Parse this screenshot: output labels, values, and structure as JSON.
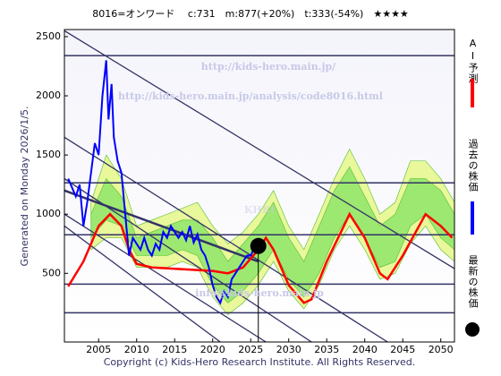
{
  "chart_data": {
    "type": "line",
    "title": "8016=オンワード　 c:731　m:877(+20%)　t:333(-54%)　★★★★",
    "side_note": "Generated on Monday 2026/1/5.",
    "footer": "Copyright (c) Kids-Hero Research Institute. All Rights Reserved.",
    "watermarks": [
      "http://kids-hero.main.jp/",
      "http://kids-hero.main.jp/analysis/code8016.html",
      "KHRI",
      "info@kids-hero.main.jp"
    ],
    "xlim": [
      2000.5,
      2051.8
    ],
    "xticks": [
      2005,
      2010,
      2015,
      2020,
      2025,
      2030,
      2035,
      2040,
      2045,
      2050
    ],
    "ylim": [
      -80,
      2560
    ],
    "yticks": [
      500,
      1000,
      1500,
      2000,
      2500
    ],
    "series": [
      {
        "name": "AI予測",
        "color": "#ff0000",
        "x": [
          2001,
          2003,
          2005,
          2006.5,
          2008,
          2009,
          2010,
          2012,
          2020,
          2022,
          2024,
          2026,
          2027,
          2028,
          2030,
          2032,
          2033,
          2035,
          2038,
          2040,
          2042,
          2043,
          2045,
          2048,
          2050,
          2051.5
        ],
        "values": [
          390,
          600,
          900,
          1000,
          900,
          700,
          580,
          550,
          520,
          500,
          550,
          700,
          800,
          700,
          400,
          250,
          280,
          600,
          1000,
          800,
          500,
          450,
          650,
          1000,
          900,
          800
        ]
      },
      {
        "name": "過去の株価",
        "color": "#0000ff",
        "x": [
          2001,
          2002,
          2002.5,
          2003,
          2003.5,
          2004,
          2004.5,
          2005,
          2005.5,
          2006,
          2006.3,
          2006.7,
          2007,
          2007.5,
          2008,
          2008.5,
          2009,
          2009.5,
          2010,
          2010.5,
          2011,
          2011.5,
          2012,
          2012.5,
          2013,
          2013.5,
          2014,
          2014.5,
          2015,
          2015.5,
          2016,
          2016.5,
          2017,
          2017.5,
          2018,
          2018.5,
          2019,
          2019.5,
          2020,
          2020.5,
          2021,
          2021.5,
          2022,
          2022.5,
          2023,
          2023.5,
          2024,
          2024.5,
          2025,
          2025.5,
          2026
        ],
        "values": [
          1300,
          1150,
          1250,
          900,
          1100,
          1350,
          1600,
          1500,
          2000,
          2300,
          1800,
          2100,
          1650,
          1450,
          1350,
          1000,
          650,
          800,
          750,
          700,
          800,
          700,
          650,
          750,
          700,
          850,
          800,
          900,
          850,
          800,
          850,
          780,
          900,
          760,
          830,
          700,
          650,
          550,
          400,
          300,
          250,
          350,
          300,
          450,
          500,
          550,
          600,
          650,
          650,
          720,
          731
        ]
      },
      {
        "name": "最新の株価",
        "color": "#000000",
        "x": [
          2026
        ],
        "values": [
          731
        ]
      }
    ],
    "bands": [
      {
        "color": "#e8f89a",
        "x": [
          2004,
          2006,
          2008,
          2010,
          2012,
          2014,
          2016,
          2018,
          2020,
          2022,
          2024,
          2026,
          2028,
          2030,
          2032,
          2034,
          2036,
          2038,
          2040,
          2042,
          2044,
          2046,
          2048,
          2050,
          2051.8
        ],
        "upper": [
          1100,
          1500,
          1300,
          900,
          950,
          1000,
          1050,
          1100,
          900,
          750,
          850,
          1000,
          1200,
          900,
          700,
          1000,
          1300,
          1550,
          1300,
          1000,
          1100,
          1450,
          1450,
          1300,
          1100
        ],
        "lower": [
          700,
          800,
          800,
          550,
          550,
          550,
          600,
          550,
          300,
          150,
          250,
          400,
          600,
          350,
          200,
          400,
          700,
          900,
          700,
          450,
          500,
          750,
          900,
          700,
          600
        ]
      },
      {
        "color": "#9de870",
        "x": [
          2004,
          2006,
          2008,
          2010,
          2012,
          2014,
          2016,
          2018,
          2020,
          2022,
          2024,
          2026,
          2028,
          2030,
          2032,
          2034,
          2036,
          2038,
          2040,
          2042,
          2044,
          2046,
          2048,
          2050,
          2051.8
        ],
        "upper": [
          1000,
          1300,
          1150,
          800,
          850,
          900,
          950,
          950,
          800,
          600,
          750,
          900,
          1100,
          800,
          600,
          900,
          1200,
          1400,
          1150,
          900,
          1000,
          1300,
          1300,
          1200,
          1000
        ],
        "lower": [
          800,
          950,
          900,
          650,
          650,
          650,
          700,
          650,
          400,
          250,
          350,
          500,
          700,
          450,
          300,
          500,
          800,
          1000,
          800,
          550,
          600,
          900,
          1000,
          800,
          700
        ]
      }
    ],
    "hlines": [
      2340,
      1265,
      826,
      409,
      167
    ],
    "hline_color": "#333366",
    "trend_lines": [
      {
        "x": [
          2000.5,
          2051.8
        ],
        "values": [
          2550,
          540
        ]
      },
      {
        "x": [
          2000.5,
          2043
        ],
        "values": [
          1650,
          -80
        ]
      },
      {
        "x": [
          2000.5,
          2033
        ],
        "values": [
          1300,
          -80
        ]
      },
      {
        "x": [
          2000.5,
          2027
        ],
        "values": [
          1000,
          -80
        ]
      },
      {
        "x": [
          2000.5,
          2021
        ],
        "values": [
          900,
          -80
        ]
      },
      {
        "x": [
          2000.5,
          2026
        ],
        "values": [
          1200,
          600
        ]
      }
    ]
  }
}
